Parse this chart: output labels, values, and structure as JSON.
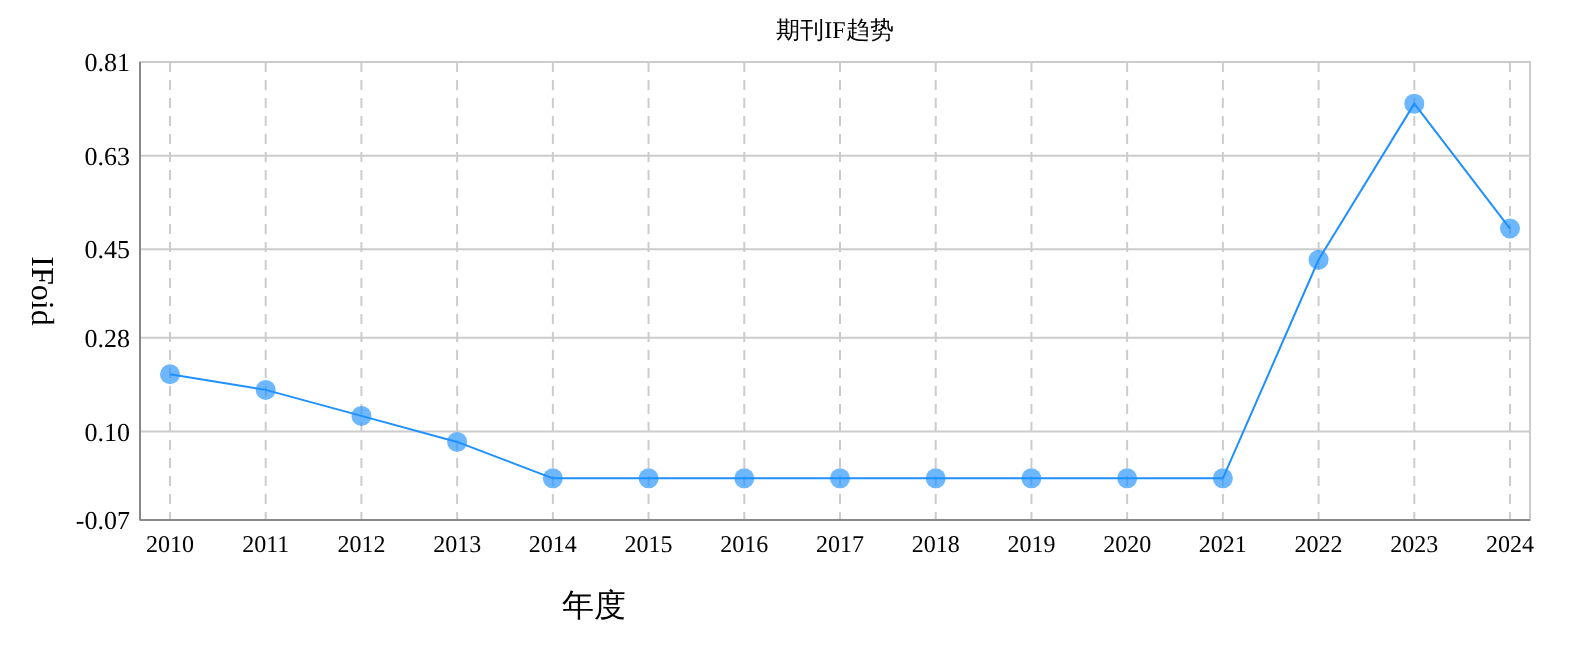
{
  "chart_data": {
    "type": "line",
    "title": "期刊IF趋势",
    "xlabel": "年度",
    "ylabel": "IFoid",
    "categories": [
      "2010",
      "2011",
      "2012",
      "2013",
      "2014",
      "2015",
      "2016",
      "2017",
      "2018",
      "2019",
      "2020",
      "2021",
      "2022",
      "2023",
      "2024"
    ],
    "series": [
      {
        "color": "#1e90ff",
        "values": [
          0.21,
          0.18,
          0.13,
          0.08,
          0.01,
          0.01,
          0.01,
          0.01,
          0.01,
          0.01,
          0.01,
          0.01,
          0.43,
          0.73,
          0.49
        ]
      }
    ],
    "ylim": [
      -0.07,
      0.81
    ],
    "yticks": [
      -0.07,
      {
        "value": 0.1,
        "label": "0.10"
      },
      0.28,
      0.45,
      0.63,
      0.81
    ],
    "grid": true,
    "marker": "circle",
    "line_style": "solid"
  }
}
